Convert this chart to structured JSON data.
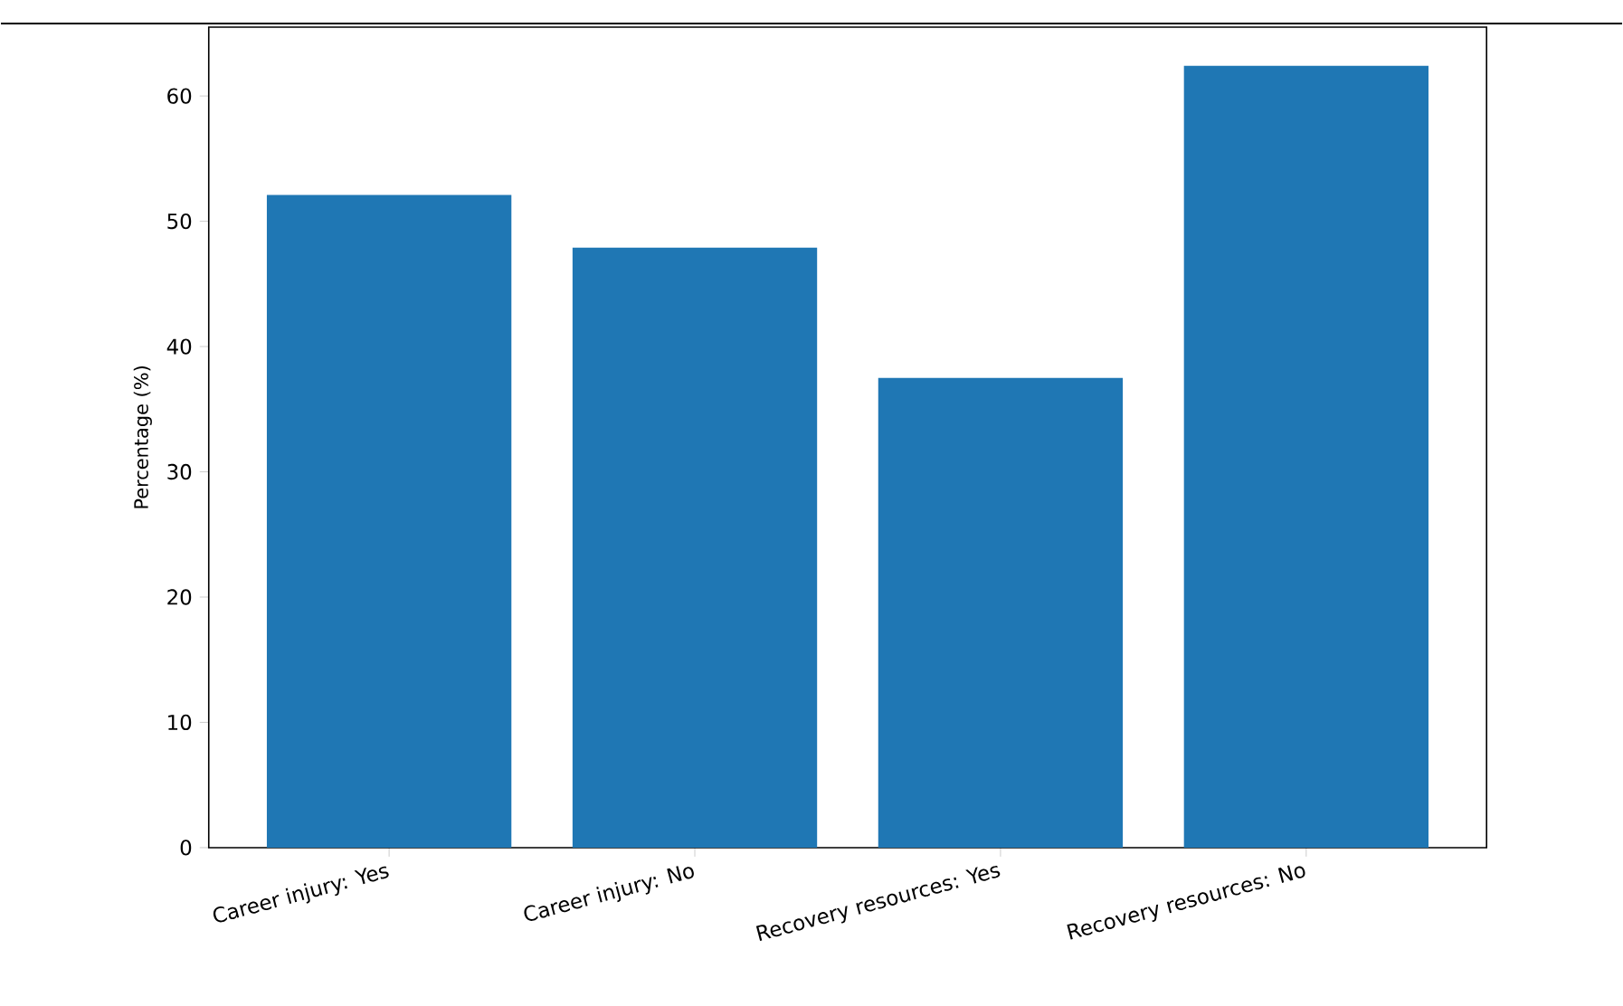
{
  "chart_data": {
    "type": "bar",
    "ylabel": "Percentage (%)",
    "categories": [
      "Career injury: Yes",
      "Career injury: No",
      "Recovery resources: Yes",
      "Recovery resources: No"
    ],
    "values": [
      52.1,
      47.9,
      37.5,
      62.4
    ],
    "color": "#1f77b4",
    "ylim": [
      0,
      65.5
    ],
    "yticks": [
      0,
      10,
      20,
      30,
      40,
      50,
      60
    ],
    "grid": false
  }
}
